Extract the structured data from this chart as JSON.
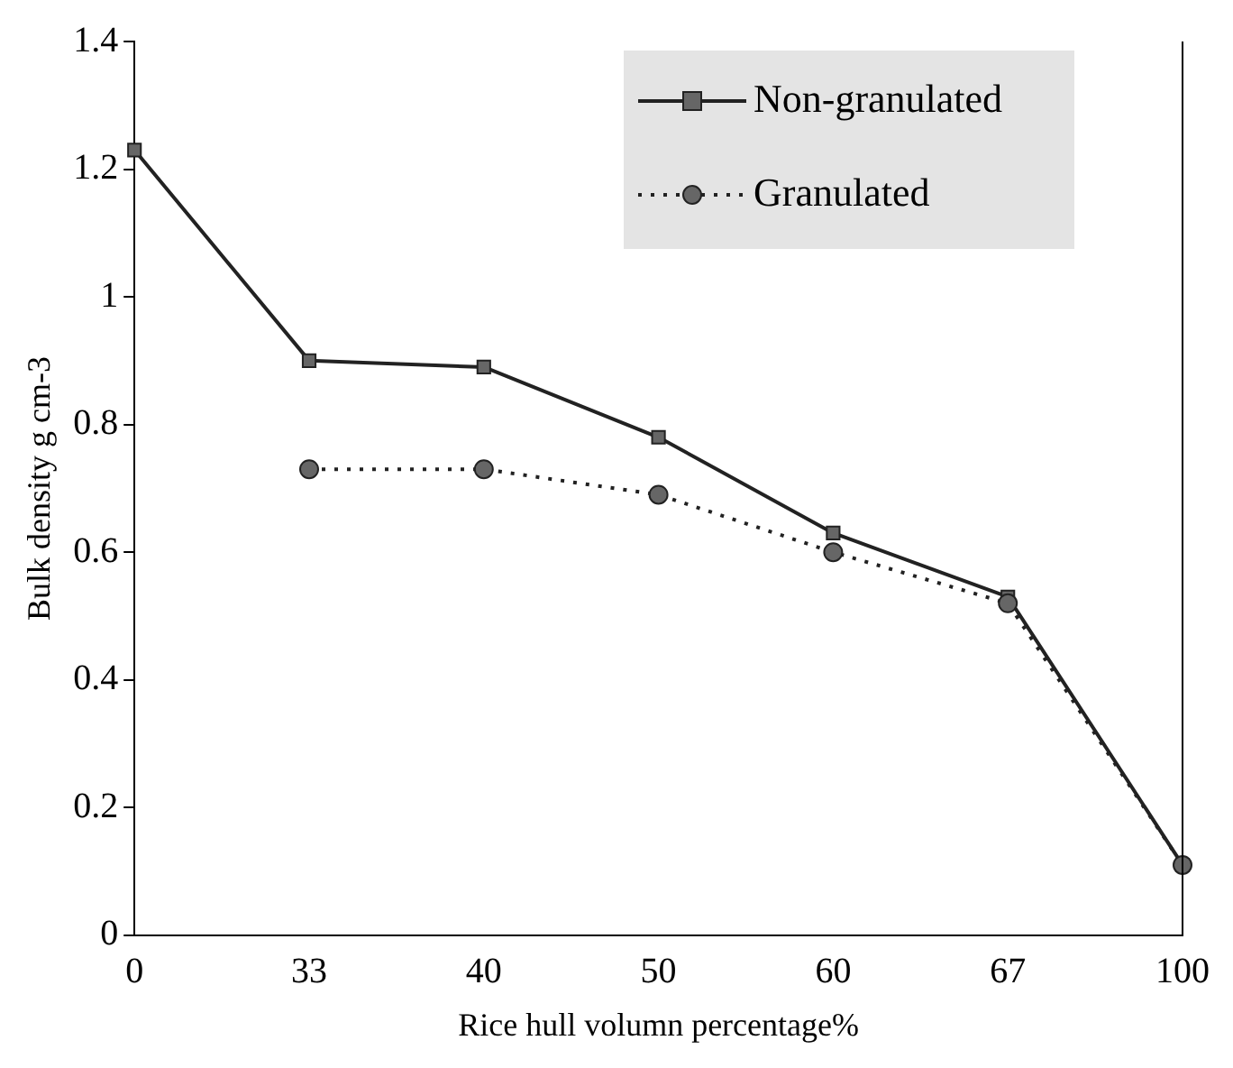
{
  "chart_data": {
    "type": "line",
    "xlabel": "Rice hull volumn percentage%",
    "ylabel": "Bulk density g cm-3",
    "categories": [
      "0",
      "33",
      "40",
      "50",
      "60",
      "67",
      "100"
    ],
    "series": [
      {
        "name": "Non-granulated",
        "color": "#222222",
        "values": [
          1.23,
          0.9,
          0.89,
          0.78,
          0.63,
          0.53,
          0.11
        ],
        "marker": "square",
        "line_style": "solid"
      },
      {
        "name": "Granulated",
        "color": "#222222",
        "values": [
          null,
          0.73,
          0.73,
          0.69,
          0.6,
          0.52,
          0.11
        ],
        "marker": "circle",
        "line_style": "dotted"
      }
    ],
    "ylim": [
      0,
      1.4
    ],
    "yticks": [
      0,
      0.2,
      0.4,
      0.6,
      0.8,
      1,
      1.2,
      1.4
    ],
    "grid": false,
    "legend": "top right"
  }
}
